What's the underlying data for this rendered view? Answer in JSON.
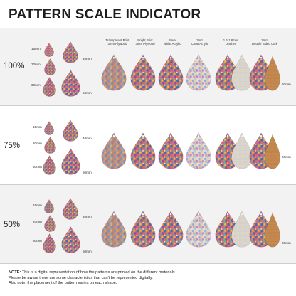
{
  "title": "PATTERN SCALE INDICATOR",
  "columns": [
    {
      "line1": "Transparent Print",
      "line2": "3mm Plywood"
    },
    {
      "line1": "Bright Print",
      "line2": "3mm Plywood"
    },
    {
      "line1": "3mm",
      "line2": "White Acrylic"
    },
    {
      "line1": "3mm",
      "line2": "Clear Acrylic"
    },
    {
      "line1": "1.6-1.8mm",
      "line2": "Leather"
    },
    {
      "line1": "2mm",
      "line2": "Double Sided Cork"
    }
  ],
  "rows": [
    {
      "scale": "100%",
      "s15": "15mm",
      "s20": "20mm",
      "s30": "30mm",
      "s40": "40mm",
      "s50": "50mm",
      "s60": "60mm"
    },
    {
      "scale": "75%",
      "s15": "15mm",
      "s20": "20mm",
      "s30": "30mm",
      "s40": "40mm",
      "s50": "50mm",
      "s60": "60mm"
    },
    {
      "scale": "50%",
      "s15": "15mm",
      "s20": "20mm",
      "s30": "30mm",
      "s40": "40mm",
      "s50": "50mm",
      "s60": "60mm"
    }
  ],
  "note": {
    "label": "NOTE:",
    "line1": "This is a digital representation of how the patterns are printed on the different materials.",
    "line2": "Please be aware there are some characteristics that can't be represented digitally.",
    "line3": "Also note, the placement of the pattern varies on each shape."
  },
  "colors": {
    "band_shade": "#f2f2f2",
    "rule": "#cfcfcf",
    "wood": "#c9905a",
    "leather": "#d8d4cc",
    "cork": "#c48a55"
  }
}
